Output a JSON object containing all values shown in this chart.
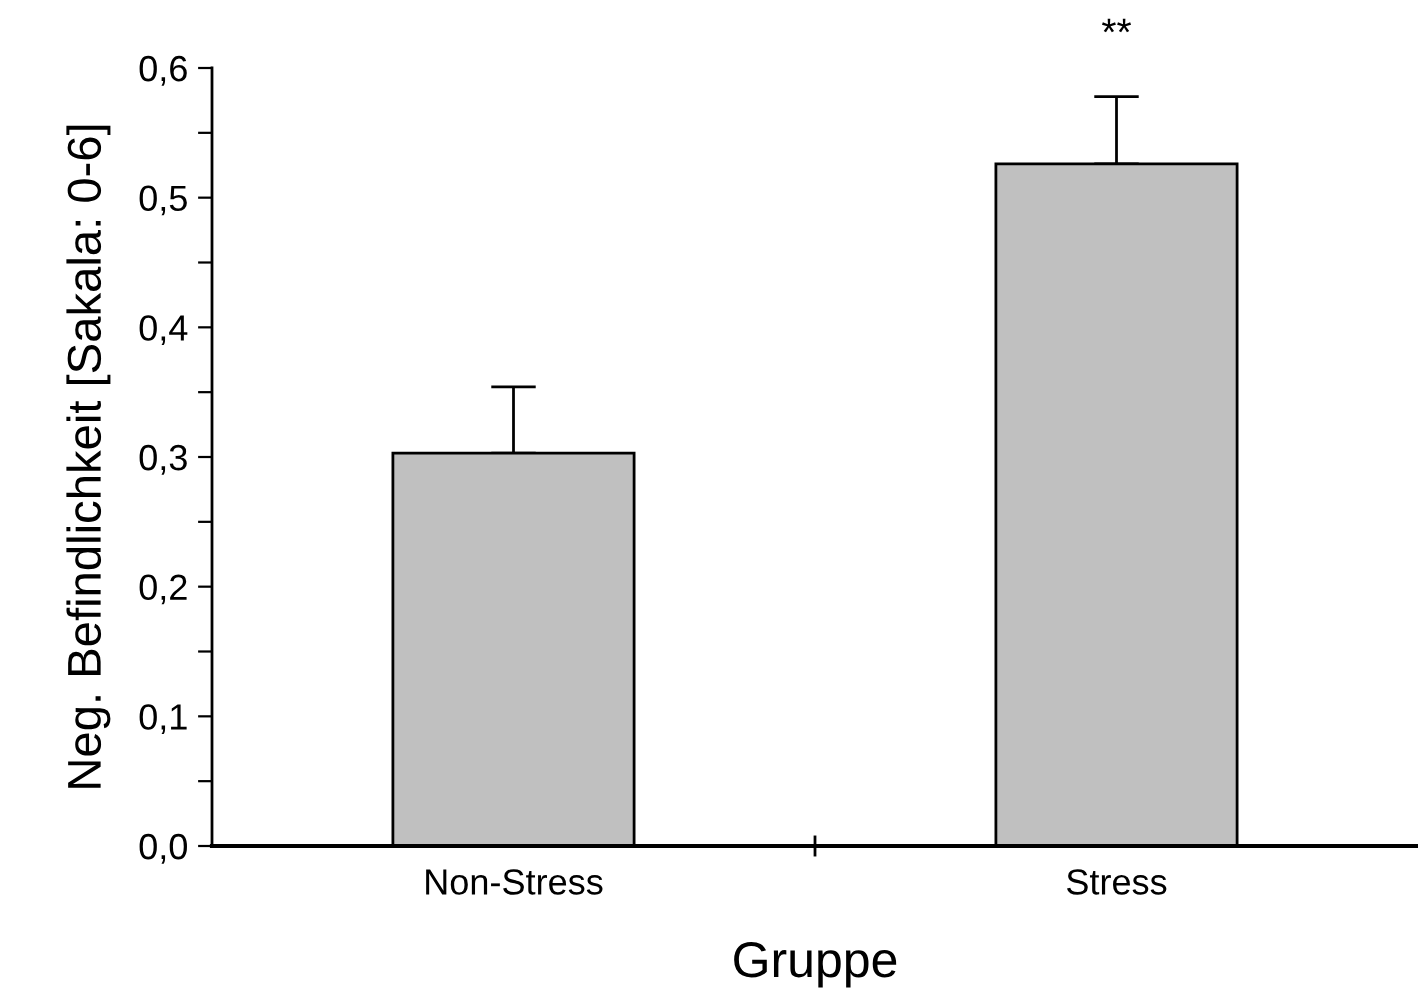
{
  "chart_data": {
    "type": "bar",
    "xlabel": "Gruppe",
    "ylabel": "Neg. Befindlichkeit [Sakala: 0-6]",
    "categories": [
      "Non-Stress",
      "Stress"
    ],
    "values": [
      0.303,
      0.526
    ],
    "errors": [
      [
        0.303,
        0.354
      ],
      [
        0.526,
        0.578
      ]
    ],
    "color": "#c0c0c0",
    "ylim": [
      0,
      0.6
    ],
    "yticks": [
      {
        "value": 0,
        "label": "0,0"
      },
      {
        "value": 0.05,
        "label": null
      },
      {
        "value": 0.1,
        "label": "0,1"
      },
      {
        "value": 0.15,
        "label": null
      },
      {
        "value": 0.2,
        "label": "0,2"
      },
      {
        "value": 0.25,
        "label": null
      },
      {
        "value": 0.3,
        "label": "0,3"
      },
      {
        "value": 0.35,
        "label": null
      },
      {
        "value": 0.4,
        "label": "0,4"
      },
      {
        "value": 0.45,
        "label": null
      },
      {
        "value": 0.5,
        "label": "0,5"
      },
      {
        "value": 0.55,
        "label": null
      },
      {
        "value": 0.6,
        "label": "0,6"
      }
    ],
    "annotations": [
      "**"
    ],
    "grid": false,
    "legend": false
  }
}
